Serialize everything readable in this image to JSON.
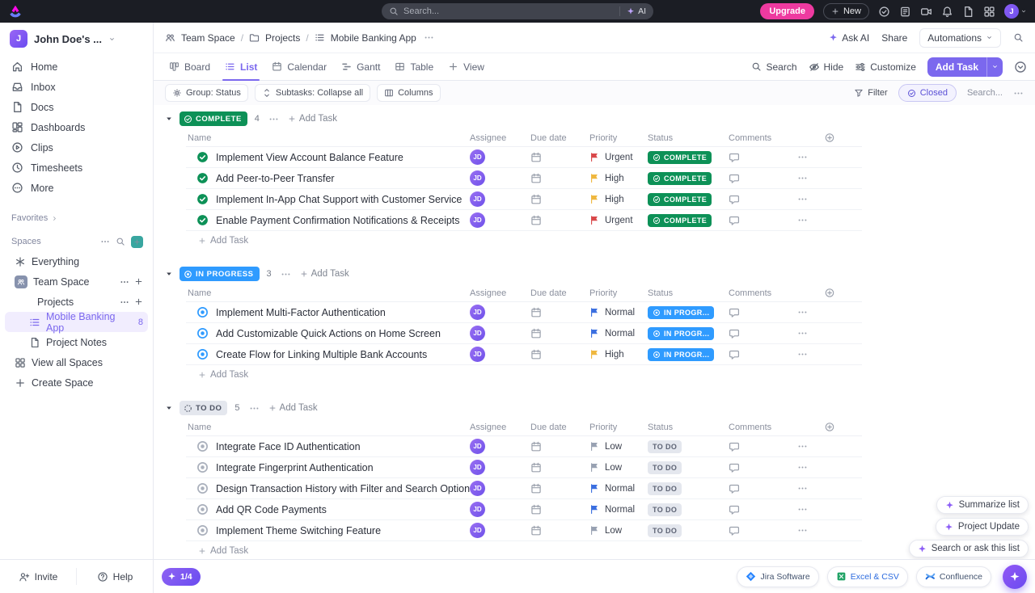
{
  "topbar": {
    "search_placeholder": "Search...",
    "ai_label": "AI",
    "upgrade_label": "Upgrade",
    "new_label": "New",
    "avatar_initial": "J"
  },
  "sidebar": {
    "workspace_name": "John Doe's ...",
    "workspace_initial": "J",
    "nav": [
      {
        "label": "Home"
      },
      {
        "label": "Inbox"
      },
      {
        "label": "Docs"
      },
      {
        "label": "Dashboards"
      },
      {
        "label": "Clips"
      },
      {
        "label": "Timesheets"
      },
      {
        "label": "More"
      }
    ],
    "favorites_label": "Favorites",
    "spaces_label": "Spaces",
    "everything_label": "Everything",
    "team_space_label": "Team Space",
    "projects_label": "Projects",
    "active_space": {
      "label": "Mobile Banking App",
      "count": "8"
    },
    "project_notes_label": "Project Notes",
    "view_all_label": "View all Spaces",
    "create_space_label": "Create Space",
    "invite_label": "Invite",
    "help_label": "Help"
  },
  "header": {
    "separator": "/",
    "breadcrumb": [
      {
        "label": "Team Space"
      },
      {
        "label": "Projects"
      },
      {
        "label": "Mobile Banking App"
      }
    ],
    "ask_ai_label": "Ask AI",
    "share_label": "Share",
    "automations_label": "Automations"
  },
  "tabs": {
    "items": [
      {
        "label": "Board"
      },
      {
        "label": "List"
      },
      {
        "label": "Calendar"
      },
      {
        "label": "Gantt"
      },
      {
        "label": "Table"
      }
    ],
    "view_label": "View",
    "search_label": "Search",
    "hide_label": "Hide",
    "customize_label": "Customize",
    "add_task_label": "Add Task"
  },
  "toolbar": {
    "group_label": "Group: Status",
    "subtasks_label": "Subtasks: Collapse all",
    "columns_label": "Columns",
    "filter_label": "Filter",
    "closed_label": "Closed",
    "search_placeholder": "Search..."
  },
  "table": {
    "columns": [
      "Name",
      "Assignee",
      "Due date",
      "Priority",
      "Status",
      "Comments"
    ],
    "add_task_label": "Add Task"
  },
  "groups": [
    {
      "type": "complete",
      "label": "COMPLETE",
      "count": "4",
      "tasks": [
        {
          "name": "Implement View Account Balance Feature",
          "assignee": "JD",
          "priority": "Urgent",
          "status": "COMPLETE"
        },
        {
          "name": "Add Peer-to-Peer Transfer",
          "assignee": "JD",
          "priority": "High",
          "status": "COMPLETE"
        },
        {
          "name": "Implement In-App Chat Support with Customer Service",
          "assignee": "JD",
          "priority": "High",
          "status": "COMPLETE"
        },
        {
          "name": "Enable Payment Confirmation Notifications & Receipts",
          "assignee": "JD",
          "priority": "Urgent",
          "status": "COMPLETE"
        }
      ]
    },
    {
      "type": "inprogress",
      "label": "IN PROGRESS",
      "count": "3",
      "tasks": [
        {
          "name": "Implement Multi-Factor Authentication",
          "assignee": "JD",
          "priority": "Normal",
          "status": "IN PROGR..."
        },
        {
          "name": "Add Customizable Quick Actions on Home Screen",
          "assignee": "JD",
          "priority": "Normal",
          "status": "IN PROGR..."
        },
        {
          "name": "Create Flow for Linking Multiple Bank Accounts",
          "assignee": "JD",
          "priority": "High",
          "status": "IN PROGR..."
        }
      ]
    },
    {
      "type": "todo",
      "label": "TO DO",
      "count": "5",
      "tasks": [
        {
          "name": "Integrate Face ID Authentication",
          "assignee": "JD",
          "priority": "Low",
          "status": "TO DO"
        },
        {
          "name": "Integrate Fingerprint Authentication",
          "assignee": "JD",
          "priority": "Low",
          "status": "TO DO"
        },
        {
          "name": "Design Transaction History with Filter and Search Options",
          "assignee": "JD",
          "priority": "Normal",
          "status": "TO DO"
        },
        {
          "name": "Add QR Code Payments",
          "assignee": "JD",
          "priority": "Normal",
          "status": "TO DO"
        },
        {
          "name": "Implement Theme Switching Feature",
          "assignee": "JD",
          "priority": "Low",
          "status": "TO DO"
        }
      ]
    }
  ],
  "floating": {
    "summarize_label": "Summarize list",
    "project_update_label": "Project Update",
    "search_ask_label": "Search or ask this list"
  },
  "footer": {
    "progress": "1/4",
    "jira_label": "Jira Software",
    "excel_label": "Excel & CSV",
    "confluence_label": "Confluence"
  },
  "colors": {
    "accent": "#7b68ee",
    "upgrade_pink": "#ee3aa0",
    "complete_green": "#0d9157",
    "inprogress_blue": "#2f9bff",
    "todo_gray": "#e4e7ee",
    "priority": {
      "Urgent": "#d9484a",
      "High": "#efb73e",
      "Normal": "#3b6fe0",
      "Low": "#98a1b2"
    }
  }
}
